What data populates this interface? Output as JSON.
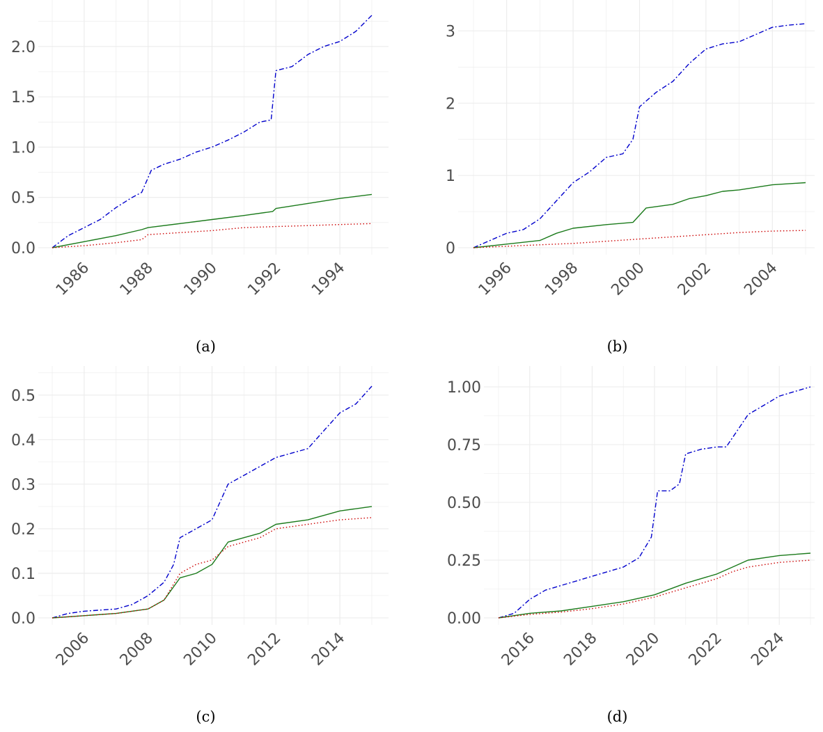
{
  "colors": {
    "series_blue": "#0000cc",
    "series_green": "#1a7a1a",
    "series_red": "#cc0000",
    "grid": "#ebebeb",
    "tick_text": "#4d4d4d"
  },
  "chart_data": [
    {
      "type": "line",
      "caption": "(a)",
      "xlim": [
        1985,
        1995
      ],
      "ylim": [
        0,
        2.31
      ],
      "yticks": [
        0.0,
        0.5,
        1.0,
        1.5,
        2.0
      ],
      "yticklabels": [
        "0.0",
        "0.5",
        "1.0",
        "1.5",
        "2.0"
      ],
      "xticks": [
        1986,
        1988,
        1990,
        1992,
        1994
      ],
      "xticklabels": [
        "1986",
        "1988",
        "1990",
        "1992",
        "1994"
      ],
      "grid": true,
      "series": [
        {
          "style": "dashdot",
          "color": "blue",
          "x": [
            1985,
            1985.5,
            1986,
            1986.5,
            1987,
            1987.5,
            1987.8,
            1988.1,
            1988.5,
            1989,
            1989.5,
            1990,
            1990.5,
            1991,
            1991.5,
            1991.85,
            1992,
            1992.5,
            1993,
            1993.5,
            1994,
            1994.5,
            1995
          ],
          "y": [
            0,
            0.12,
            0.2,
            0.28,
            0.4,
            0.5,
            0.55,
            0.77,
            0.83,
            0.88,
            0.95,
            1.0,
            1.07,
            1.15,
            1.25,
            1.27,
            1.76,
            1.8,
            1.92,
            2.0,
            2.05,
            2.15,
            2.31
          ]
        },
        {
          "style": "solid",
          "color": "green",
          "x": [
            1985,
            1986,
            1987,
            1987.8,
            1988,
            1989,
            1990,
            1991,
            1991.9,
            1992,
            1993,
            1994,
            1995
          ],
          "y": [
            0,
            0.06,
            0.12,
            0.18,
            0.2,
            0.24,
            0.28,
            0.32,
            0.36,
            0.39,
            0.44,
            0.49,
            0.53
          ]
        },
        {
          "style": "dotted",
          "color": "red",
          "x": [
            1985,
            1986,
            1987,
            1987.8,
            1988,
            1989,
            1990,
            1991,
            1992,
            1993,
            1994,
            1995
          ],
          "y": [
            0,
            0.02,
            0.05,
            0.08,
            0.13,
            0.15,
            0.17,
            0.2,
            0.21,
            0.22,
            0.23,
            0.24
          ]
        }
      ]
    },
    {
      "type": "line",
      "caption": "(b)",
      "xlim": [
        1995,
        2005
      ],
      "ylim": [
        0,
        3.1
      ],
      "yticks": [
        0,
        1,
        2,
        3
      ],
      "yticklabels": [
        "0",
        "1",
        "2",
        "3"
      ],
      "xticks": [
        1996,
        1998,
        2000,
        2002,
        2004
      ],
      "xticklabels": [
        "1996",
        "1998",
        "2000",
        "2002",
        "2004"
      ],
      "grid": true,
      "series": [
        {
          "style": "dashdot",
          "color": "blue",
          "x": [
            1995,
            1995.5,
            1996,
            1996.5,
            1997,
            1997.5,
            1998,
            1998.5,
            1999,
            1999.5,
            1999.8,
            2000,
            2000.5,
            2001,
            2001.5,
            2002,
            2002.5,
            2003,
            2003.5,
            2004,
            2004.5,
            2005
          ],
          "y": [
            0,
            0.1,
            0.2,
            0.25,
            0.4,
            0.65,
            0.9,
            1.05,
            1.25,
            1.3,
            1.5,
            1.95,
            2.15,
            2.3,
            2.55,
            2.75,
            2.82,
            2.85,
            2.95,
            3.05,
            3.08,
            3.1
          ]
        },
        {
          "style": "solid",
          "color": "green",
          "x": [
            1995,
            1996,
            1997,
            1997.5,
            1998,
            1999,
            1999.8,
            2000.2,
            2001,
            2001.5,
            2002,
            2002.5,
            2003,
            2004,
            2005
          ],
          "y": [
            0,
            0.05,
            0.1,
            0.2,
            0.27,
            0.32,
            0.35,
            0.55,
            0.6,
            0.68,
            0.72,
            0.78,
            0.8,
            0.87,
            0.9
          ]
        },
        {
          "style": "dotted",
          "color": "red",
          "x": [
            1995,
            1996,
            1997,
            1998,
            1999,
            2000,
            2001,
            2002,
            2003,
            2004,
            2005
          ],
          "y": [
            0,
            0.02,
            0.04,
            0.06,
            0.09,
            0.12,
            0.15,
            0.18,
            0.21,
            0.23,
            0.24
          ]
        }
      ]
    },
    {
      "type": "line",
      "caption": "(c)",
      "xlim": [
        2005,
        2015
      ],
      "ylim": [
        0,
        0.52
      ],
      "yticks": [
        0.0,
        0.1,
        0.2,
        0.3,
        0.4,
        0.5
      ],
      "yticklabels": [
        "0.0",
        "0.1",
        "0.2",
        "0.3",
        "0.4",
        "0.5"
      ],
      "xticks": [
        2006,
        2008,
        2010,
        2012,
        2014
      ],
      "xticklabels": [
        "2006",
        "2008",
        "2010",
        "2012",
        "2014"
      ],
      "grid": true,
      "series": [
        {
          "style": "dashdot",
          "color": "blue",
          "x": [
            2005,
            2005.5,
            2006,
            2007,
            2007.5,
            2008,
            2008.5,
            2008.8,
            2009,
            2009.5,
            2010,
            2010.5,
            2011,
            2011.5,
            2012,
            2012.5,
            2013,
            2013.5,
            2014,
            2014.5,
            2015
          ],
          "y": [
            0,
            0.01,
            0.015,
            0.02,
            0.03,
            0.05,
            0.08,
            0.12,
            0.18,
            0.2,
            0.22,
            0.3,
            0.32,
            0.34,
            0.36,
            0.37,
            0.38,
            0.42,
            0.46,
            0.48,
            0.52
          ]
        },
        {
          "style": "solid",
          "color": "green",
          "x": [
            2005,
            2006,
            2007,
            2008,
            2008.5,
            2009,
            2009.5,
            2010,
            2010.5,
            2011,
            2011.5,
            2012,
            2013,
            2014,
            2015
          ],
          "y": [
            0,
            0.005,
            0.01,
            0.02,
            0.04,
            0.09,
            0.1,
            0.12,
            0.17,
            0.18,
            0.19,
            0.21,
            0.22,
            0.24,
            0.25
          ]
        },
        {
          "style": "dotted",
          "color": "red",
          "x": [
            2005,
            2006,
            2007,
            2008,
            2008.5,
            2009,
            2009.5,
            2010,
            2010.5,
            2011,
            2011.5,
            2012,
            2013,
            2014,
            2015
          ],
          "y": [
            0,
            0.005,
            0.01,
            0.02,
            0.04,
            0.1,
            0.12,
            0.13,
            0.16,
            0.17,
            0.18,
            0.2,
            0.21,
            0.22,
            0.225
          ]
        }
      ]
    },
    {
      "type": "line",
      "caption": "(d)",
      "xlim": [
        2015,
        2025
      ],
      "ylim": [
        0,
        1.0
      ],
      "yticks": [
        0.0,
        0.25,
        0.5,
        0.75,
        1.0
      ],
      "yticklabels": [
        "0.00",
        "0.25",
        "0.50",
        "0.75",
        "1.00"
      ],
      "xticks": [
        2016,
        2018,
        2020,
        2022,
        2024
      ],
      "xticklabels": [
        "2016",
        "2018",
        "2020",
        "2022",
        "2024"
      ],
      "grid": true,
      "series": [
        {
          "style": "dashdot",
          "color": "blue",
          "x": [
            2015,
            2015.5,
            2016,
            2016.5,
            2017,
            2017.5,
            2018,
            2018.5,
            2019,
            2019.5,
            2019.9,
            2020.1,
            2020.5,
            2020.8,
            2021,
            2021.5,
            2022,
            2022.3,
            2022.7,
            2023,
            2023.5,
            2024,
            2024.5,
            2025
          ],
          "y": [
            0,
            0.02,
            0.08,
            0.12,
            0.14,
            0.16,
            0.18,
            0.2,
            0.22,
            0.26,
            0.35,
            0.55,
            0.55,
            0.58,
            0.71,
            0.73,
            0.74,
            0.74,
            0.82,
            0.88,
            0.92,
            0.96,
            0.98,
            1.0
          ]
        },
        {
          "style": "solid",
          "color": "green",
          "x": [
            2015,
            2016,
            2017,
            2018,
            2019,
            2020,
            2021,
            2022,
            2022.5,
            2023,
            2024,
            2025
          ],
          "y": [
            0,
            0.02,
            0.03,
            0.05,
            0.07,
            0.1,
            0.15,
            0.19,
            0.22,
            0.25,
            0.27,
            0.28
          ]
        },
        {
          "style": "dotted",
          "color": "red",
          "x": [
            2015,
            2016,
            2017,
            2018,
            2019,
            2020,
            2021,
            2022,
            2022.5,
            2023,
            2024,
            2025
          ],
          "y": [
            0,
            0.015,
            0.025,
            0.04,
            0.06,
            0.09,
            0.13,
            0.17,
            0.2,
            0.22,
            0.24,
            0.25
          ]
        }
      ]
    }
  ]
}
